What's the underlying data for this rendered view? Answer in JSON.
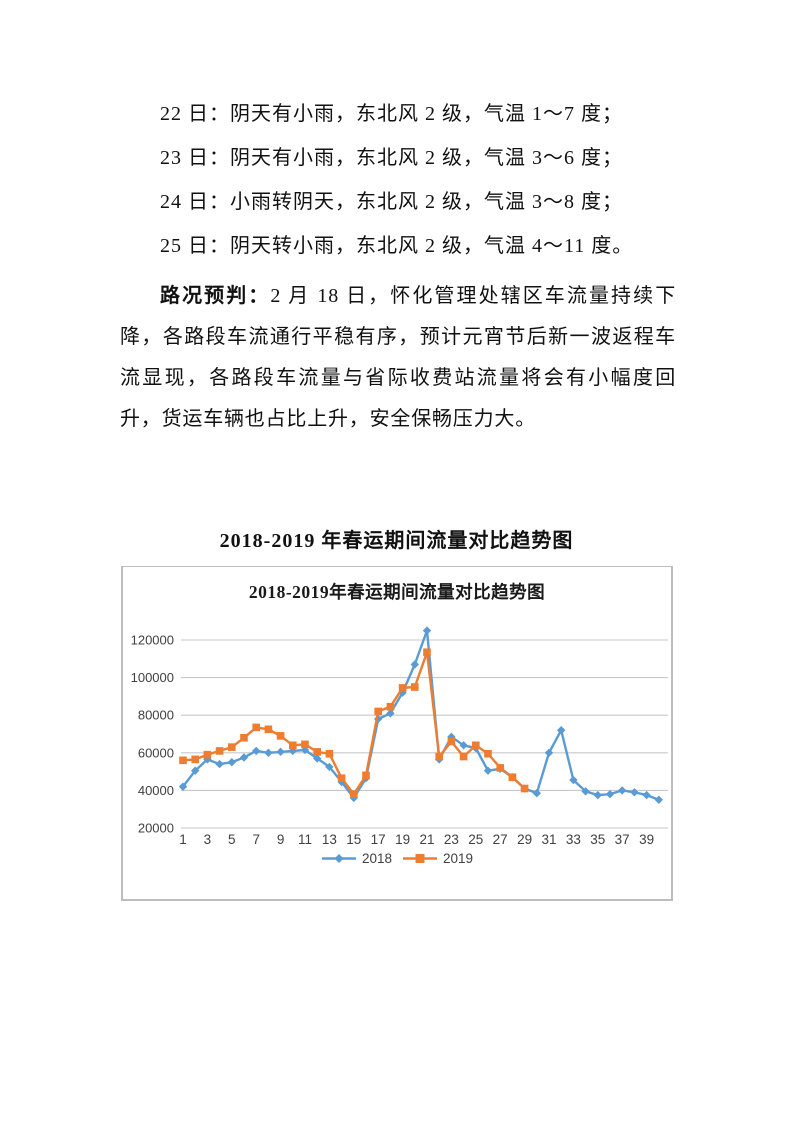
{
  "document": {
    "weather_lines": [
      "22 日：阴天有小雨，东北风 2 级，气温 1～7 度；",
      "23 日：阴天有小雨，东北风 2 级，气温 3～6 度；",
      "24 日：小雨转阴天，东北风 2 级，气温 3～8 度；",
      "25 日：阴天转小雨，东北风 2 级，气温 4～11 度。"
    ],
    "forecast": {
      "label": "路况预判：",
      "body": "2 月 18 日，怀化管理处辖区车流量持续下降，各路段车流通行平稳有序，预计元宵节后新一波返程车流显现，各路段车流量与省际收费站流量将会有小幅度回升，货运车辆也占比上升，安全保畅压力大。"
    },
    "chart_caption": "2018-2019 年春运期间流量对比趋势图"
  },
  "chart_data": {
    "type": "line",
    "title": "2018-2019年春运期间流量对比趋势图",
    "x": [
      1,
      2,
      3,
      4,
      5,
      6,
      7,
      8,
      9,
      10,
      11,
      12,
      13,
      14,
      15,
      16,
      17,
      18,
      19,
      20,
      21,
      22,
      23,
      24,
      25,
      26,
      27,
      28,
      29,
      30,
      31,
      32,
      33,
      34,
      35,
      36,
      37,
      38,
      39,
      40
    ],
    "x_tick_labels": [
      "1",
      "3",
      "5",
      "7",
      "9",
      "11",
      "13",
      "15",
      "17",
      "19",
      "21",
      "23",
      "25",
      "27",
      "29",
      "31",
      "33",
      "35",
      "37",
      "39"
    ],
    "xlabel": "",
    "ylabel": "",
    "ylim": [
      20000,
      130000
    ],
    "yticks": [
      20000,
      40000,
      60000,
      80000,
      100000,
      120000
    ],
    "grid": true,
    "legend_position": "bottom",
    "colors": {
      "grid": "#c8c8c8",
      "axis_text": "#404040",
      "series_2018": "#5B9BD5",
      "series_2019": "#ED7D31"
    },
    "series": [
      {
        "name": "2018",
        "color": "#5B9BD5",
        "marker": "diamond",
        "values": [
          42000,
          50500,
          56500,
          54000,
          55000,
          57500,
          61000,
          60000,
          60500,
          61000,
          61500,
          57000,
          52500,
          44500,
          36000,
          46500,
          78000,
          81000,
          92000,
          107000,
          125000,
          56500,
          68500,
          64000,
          62500,
          50500,
          51500,
          47000,
          41000,
          38500,
          60000,
          72000,
          45500,
          39500,
          37500,
          38000,
          40000,
          39000,
          37500,
          35000
        ]
      },
      {
        "name": "2019",
        "color": "#ED7D31",
        "marker": "square",
        "values": [
          56000,
          56500,
          59000,
          61000,
          63000,
          68000,
          73500,
          72500,
          69000,
          64000,
          64500,
          60500,
          59500,
          46500,
          38000,
          48000,
          82000,
          84500,
          94500,
          95000,
          113500,
          58000,
          66000,
          58000,
          64000,
          59500,
          52000,
          47000,
          41000
        ]
      }
    ]
  }
}
